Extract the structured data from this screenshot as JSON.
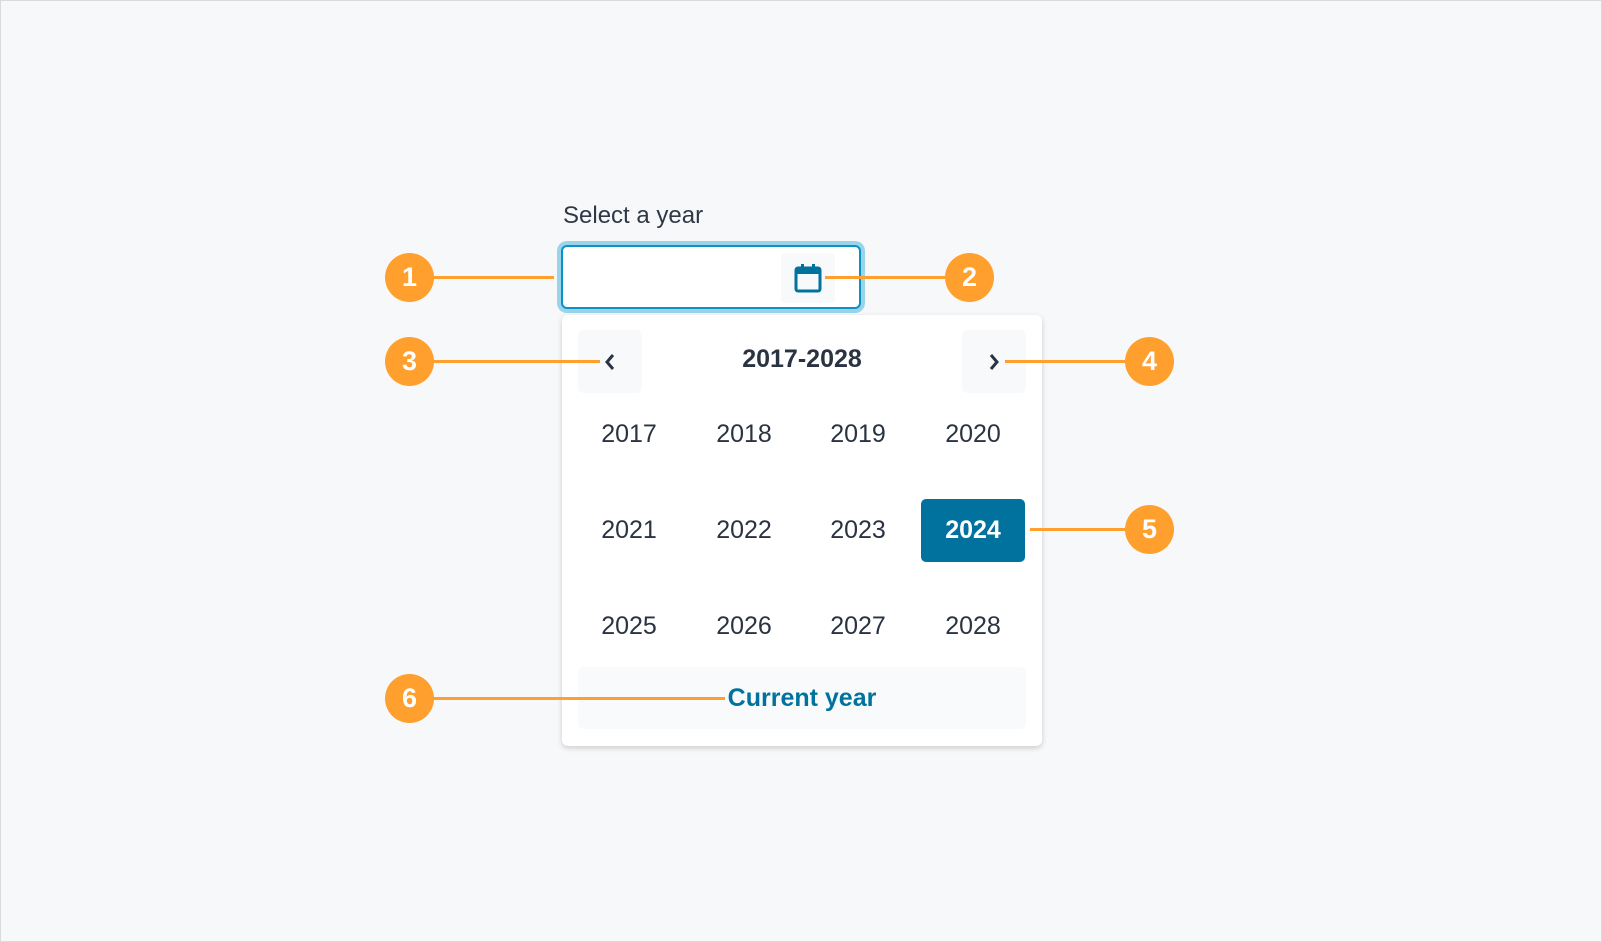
{
  "field": {
    "label": "Select a year",
    "value": "",
    "calendar_icon": "calendar-icon"
  },
  "picker": {
    "range": "2017-2028",
    "prev_icon": "chevron-left-icon",
    "next_icon": "chevron-right-icon",
    "years": [
      "2017",
      "2018",
      "2019",
      "2020",
      "2021",
      "2022",
      "2023",
      "2024",
      "2025",
      "2026",
      "2027",
      "2028"
    ],
    "selected": "2024",
    "current_year_label": "Current year"
  },
  "annotations": [
    "1",
    "2",
    "3",
    "4",
    "5",
    "6"
  ],
  "colors": {
    "accent": "#00729d",
    "focus_ring": "#9ad3ea",
    "annotation": "#ff9f2e"
  }
}
